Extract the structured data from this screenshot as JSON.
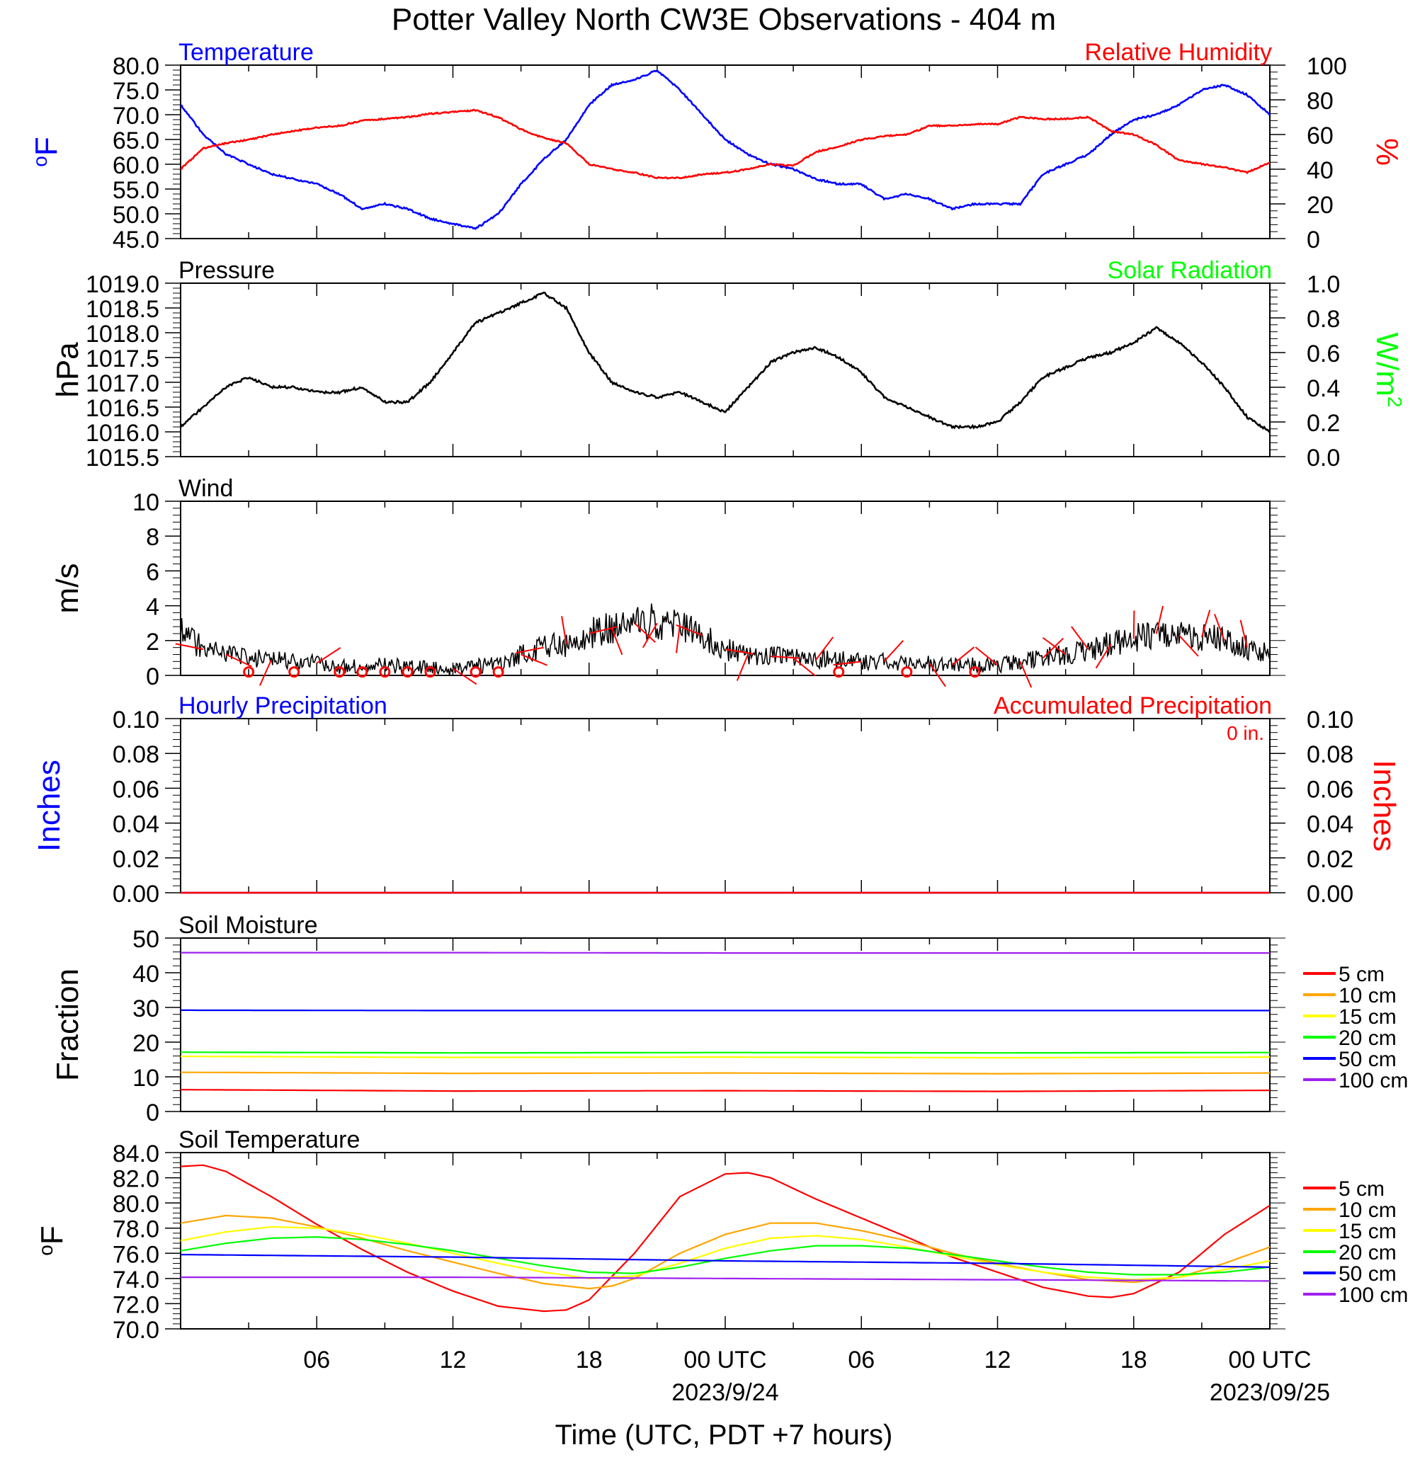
{
  "title": "Potter Valley North CW3E Observations - 404 m",
  "x_axis": {
    "label": "Time (UTC, PDT +7 hours)",
    "ticks": [
      "06",
      "12",
      "18",
      "00 UTC",
      "06",
      "12",
      "18",
      "00 UTC"
    ],
    "dates": [
      "2023/9/24",
      "2023/09/25"
    ]
  },
  "colors": {
    "temperature": "#0000ff",
    "humidity": "#ff0000",
    "pressure": "#000000",
    "solar": "#00ff00",
    "wind": "#000000",
    "wind_barb": "#ff0000",
    "hourly_precip": "#0000ff",
    "accum_precip": "#ff0000",
    "depth_5": "#ff0000",
    "depth_10": "#ffa500",
    "depth_15": "#ffff00",
    "depth_20": "#00ff00",
    "depth_50": "#0000ff",
    "depth_100": "#a020f0"
  },
  "chart_data": [
    {
      "type": "line",
      "left_title": "Temperature",
      "right_title": "Relative Humidity",
      "ylabel_left": "°F",
      "ylabel_right": "%",
      "yticks_left": [
        "45.0",
        "50.0",
        "55.0",
        "60.0",
        "65.0",
        "70.0",
        "75.0",
        "80.0"
      ],
      "yticks_right": [
        "0",
        "20",
        "40",
        "60",
        "80",
        "100"
      ],
      "ylim_left": [
        45,
        80
      ],
      "ylim_right": [
        0,
        100
      ],
      "xlim_hours": [
        1,
        25
      ],
      "series": [
        {
          "name": "Temperature",
          "axis": "left",
          "color": "#0000ff",
          "x": [
            1,
            2,
            3,
            4,
            5,
            6,
            7,
            8,
            9,
            10,
            11,
            12,
            13,
            14,
            15,
            16,
            17,
            18,
            19,
            20,
            21,
            22,
            23,
            24,
            25,
            26,
            27,
            28,
            29,
            30,
            31,
            32,
            33,
            34,
            35,
            36,
            37,
            38,
            39,
            40,
            41,
            42,
            43,
            44,
            45,
            46,
            47,
            48,
            49
          ],
          "y": [
            72,
            66,
            62,
            60,
            58,
            57,
            56,
            54,
            51,
            52,
            51,
            49,
            48,
            47,
            50,
            56,
            61,
            65,
            72,
            76,
            77,
            79,
            75,
            70,
            65,
            62,
            60,
            59,
            57,
            56,
            56,
            53,
            54,
            53,
            51,
            52,
            52,
            52,
            58,
            60,
            62,
            66,
            69,
            70,
            72,
            75,
            76,
            74,
            70
          ]
        },
        {
          "name": "Relative Humidity",
          "axis": "right",
          "color": "#ff0000",
          "x": [
            1,
            2,
            3,
            4,
            5,
            6,
            7,
            8,
            9,
            10,
            11,
            12,
            13,
            14,
            15,
            16,
            17,
            18,
            19,
            20,
            21,
            22,
            23,
            24,
            25,
            26,
            27,
            28,
            29,
            30,
            31,
            32,
            33,
            34,
            35,
            36,
            37,
            38,
            39,
            40,
            41,
            42,
            43,
            44,
            45,
            46,
            47,
            48,
            49
          ],
          "y": [
            40,
            52,
            55,
            57,
            60,
            62,
            64,
            65,
            68,
            69,
            70,
            72,
            73,
            74,
            70,
            63,
            58,
            55,
            43,
            40,
            38,
            35,
            35,
            37,
            38,
            40,
            43,
            42,
            50,
            53,
            57,
            59,
            60,
            65,
            65,
            66,
            66,
            70,
            69,
            69,
            70,
            62,
            60,
            54,
            45,
            43,
            41,
            38,
            44
          ]
        }
      ]
    },
    {
      "type": "line",
      "left_title": "Pressure",
      "right_title": "Solar Radiation",
      "ylabel_left": "hPa",
      "ylabel_right": "W/m",
      "ylabel_right_sup": "2",
      "yticks_left": [
        "1015.5",
        "1016.0",
        "1016.5",
        "1017.0",
        "1017.5",
        "1018.0",
        "1018.5",
        "1019.0"
      ],
      "yticks_right": [
        "0.0",
        "0.2",
        "0.4",
        "0.6",
        "0.8",
        "1.0"
      ],
      "ylim_left": [
        1015.5,
        1019.0
      ],
      "ylim_right": [
        0.0,
        1.0
      ],
      "xlim_hours": [
        1,
        25
      ],
      "series": [
        {
          "name": "Pressure",
          "axis": "left",
          "color": "#000000",
          "x": [
            1,
            2,
            3,
            4,
            5,
            6,
            7,
            8,
            9,
            10,
            11,
            12,
            13,
            14,
            15,
            16,
            17,
            18,
            19,
            20,
            21,
            22,
            23,
            24,
            25,
            26,
            27,
            28,
            29,
            30,
            31,
            32,
            33,
            34,
            35,
            36,
            37,
            38,
            39,
            40,
            41,
            42,
            43,
            44,
            45,
            46,
            47,
            48,
            49
          ],
          "y": [
            1016.1,
            1016.5,
            1016.9,
            1017.1,
            1016.9,
            1016.9,
            1016.8,
            1016.8,
            1016.9,
            1016.6,
            1016.6,
            1017.0,
            1017.6,
            1018.2,
            1018.4,
            1018.6,
            1018.8,
            1018.5,
            1017.6,
            1017.0,
            1016.8,
            1016.7,
            1016.8,
            1016.6,
            1016.4,
            1016.9,
            1017.4,
            1017.6,
            1017.7,
            1017.5,
            1017.2,
            1016.7,
            1016.5,
            1016.3,
            1016.1,
            1016.1,
            1016.2,
            1016.6,
            1017.1,
            1017.3,
            1017.5,
            1017.6,
            1017.8,
            1018.1,
            1017.8,
            1017.4,
            1016.9,
            1016.3,
            1016.0
          ]
        }
      ]
    },
    {
      "type": "line",
      "left_title": "Wind",
      "ylabel_left": "m/s",
      "yticks_left": [
        "0",
        "2",
        "4",
        "6",
        "8",
        "10"
      ],
      "ylim_left": [
        0,
        10
      ],
      "xlim_hours": [
        1,
        25
      ],
      "series": [
        {
          "name": "Wind",
          "axis": "left",
          "color": "#000000",
          "x": [
            1,
            2,
            3,
            4,
            5,
            6,
            7,
            8,
            9,
            10,
            11,
            12,
            13,
            14,
            15,
            16,
            17,
            18,
            19,
            20,
            21,
            22,
            23,
            24,
            25,
            26,
            27,
            28,
            29,
            30,
            31,
            32,
            33,
            34,
            35,
            36,
            37,
            38,
            39,
            40,
            41,
            42,
            43,
            44,
            45,
            46,
            47,
            48,
            49
          ],
          "y": [
            2.6,
            1.5,
            1.2,
            1.0,
            0.9,
            0.8,
            0.7,
            0.5,
            0.5,
            0.6,
            0.5,
            0.4,
            0.4,
            0.5,
            0.7,
            1.2,
            1.6,
            1.8,
            2.4,
            2.7,
            3.0,
            3.1,
            2.9,
            2.3,
            1.5,
            1.2,
            1.1,
            1.0,
            0.9,
            0.9,
            0.8,
            0.8,
            0.7,
            0.7,
            0.6,
            0.6,
            0.6,
            0.8,
            1.0,
            1.2,
            1.5,
            1.8,
            2.1,
            2.4,
            2.3,
            2.2,
            2.0,
            1.6,
            1.2
          ]
        }
      ],
      "calm_hours": [
        4,
        6,
        8,
        9,
        10,
        11,
        12,
        14,
        15,
        30,
        33,
        36
      ]
    },
    {
      "type": "line",
      "left_title": "Hourly Precipitation",
      "right_title": "Accumulated Precipitation",
      "annotation": "0 in.",
      "ylabel_left": "Inches",
      "ylabel_right": "Inches",
      "yticks_left": [
        "0.00",
        "0.02",
        "0.04",
        "0.06",
        "0.08",
        "0.10"
      ],
      "yticks_right": [
        "0.00",
        "0.02",
        "0.04",
        "0.06",
        "0.08",
        "0.10"
      ],
      "ylim_left": [
        0,
        0.1
      ],
      "ylim_right": [
        0,
        0.1
      ],
      "xlim_hours": [
        1,
        25
      ],
      "series": [
        {
          "name": "Hourly Precipitation",
          "axis": "left",
          "color": "#0000ff",
          "x": [
            1,
            49
          ],
          "y": [
            0,
            0
          ]
        },
        {
          "name": "Accumulated Precipitation",
          "axis": "right",
          "color": "#ff0000",
          "x": [
            1,
            49
          ],
          "y": [
            0,
            0
          ]
        }
      ]
    },
    {
      "type": "line",
      "left_title": "Soil Moisture",
      "ylabel_left": "Fraction",
      "yticks_left": [
        "0",
        "10",
        "20",
        "30",
        "40",
        "50"
      ],
      "ylim_left": [
        0,
        50
      ],
      "xlim_hours": [
        1,
        25
      ],
      "legend": [
        "5 cm",
        "10 cm",
        "15 cm",
        "20 cm",
        "50 cm",
        "100 cm"
      ],
      "series": [
        {
          "name": "5 cm",
          "axis": "left",
          "color": "#ff0000",
          "x": [
            1,
            13,
            25,
            37,
            49
          ],
          "y": [
            6.3,
            5.9,
            6.0,
            5.8,
            6.1
          ]
        },
        {
          "name": "10 cm",
          "axis": "left",
          "color": "#ffa500",
          "x": [
            1,
            13,
            25,
            37,
            49
          ],
          "y": [
            11.3,
            11.0,
            11.1,
            10.9,
            11.1
          ]
        },
        {
          "name": "15 cm",
          "axis": "left",
          "color": "#ffff00",
          "x": [
            1,
            13,
            25,
            37,
            49
          ],
          "y": [
            15.9,
            15.6,
            15.7,
            15.5,
            15.7
          ]
        },
        {
          "name": "20 cm",
          "axis": "left",
          "color": "#00ff00",
          "x": [
            1,
            13,
            25,
            37,
            49
          ],
          "y": [
            17.1,
            16.9,
            17.0,
            16.9,
            17.0
          ]
        },
        {
          "name": "50 cm",
          "axis": "left",
          "color": "#0000ff",
          "x": [
            1,
            13,
            25,
            37,
            49
          ],
          "y": [
            29.2,
            29.1,
            29.1,
            29.1,
            29.1
          ]
        },
        {
          "name": "100 cm",
          "axis": "left",
          "color": "#a020f0",
          "x": [
            1,
            13,
            25,
            37,
            49
          ],
          "y": [
            45.8,
            45.8,
            45.7,
            45.7,
            45.7
          ]
        }
      ]
    },
    {
      "type": "line",
      "left_title": "Soil Temperature",
      "ylabel_left": "°F",
      "yticks_left": [
        "70.0",
        "72.0",
        "74.0",
        "76.0",
        "78.0",
        "80.0",
        "82.0",
        "84.0"
      ],
      "ylim_left": [
        70,
        84
      ],
      "xlim_hours": [
        1,
        25
      ],
      "legend": [
        "5 cm",
        "10 cm",
        "15 cm",
        "20 cm",
        "50 cm",
        "100 cm"
      ],
      "series": [
        {
          "name": "5 cm",
          "axis": "left",
          "color": "#ff0000",
          "x": [
            1,
            2,
            3,
            5,
            7,
            9,
            11,
            13,
            15,
            17,
            18,
            19,
            21,
            23,
            25,
            26,
            27,
            29,
            31,
            33,
            35,
            37,
            39,
            41,
            42,
            43,
            45,
            47,
            49
          ],
          "y": [
            82.9,
            83.0,
            82.5,
            80.5,
            78.3,
            76.3,
            74.5,
            73.0,
            71.8,
            71.4,
            71.5,
            72.3,
            76.0,
            80.5,
            82.3,
            82.4,
            82.0,
            80.3,
            78.8,
            77.3,
            75.7,
            74.5,
            73.3,
            72.6,
            72.5,
            72.8,
            74.5,
            77.5,
            79.8
          ]
        },
        {
          "name": "10 cm",
          "axis": "left",
          "color": "#ffa500",
          "x": [
            1,
            3,
            5,
            7,
            9,
            11,
            13,
            15,
            17,
            19,
            20,
            21,
            23,
            25,
            27,
            29,
            31,
            33,
            35,
            37,
            39,
            41,
            43,
            45,
            47,
            49
          ],
          "y": [
            78.4,
            79.0,
            78.8,
            78.1,
            77.2,
            76.2,
            75.3,
            74.4,
            73.6,
            73.2,
            73.4,
            74.0,
            76.0,
            77.5,
            78.4,
            78.4,
            77.8,
            77.0,
            76.0,
            75.2,
            74.5,
            73.9,
            73.7,
            74.1,
            75.2,
            76.5
          ]
        },
        {
          "name": "15 cm",
          "axis": "left",
          "color": "#ffff00",
          "x": [
            1,
            3,
            5,
            7,
            9,
            11,
            13,
            15,
            17,
            19,
            21,
            23,
            25,
            27,
            29,
            31,
            33,
            35,
            37,
            39,
            41,
            43,
            45,
            47,
            49
          ],
          "y": [
            77.0,
            77.7,
            78.1,
            78.0,
            77.5,
            76.8,
            76.0,
            75.2,
            74.5,
            74.0,
            74.2,
            75.2,
            76.4,
            77.2,
            77.4,
            77.1,
            76.5,
            75.8,
            75.1,
            74.5,
            74.1,
            73.9,
            74.1,
            74.7,
            75.4
          ]
        },
        {
          "name": "20 cm",
          "axis": "left",
          "color": "#00ff00",
          "x": [
            1,
            3,
            5,
            7,
            9,
            11,
            13,
            15,
            17,
            19,
            21,
            23,
            25,
            27,
            29,
            31,
            33,
            35,
            37,
            39,
            41,
            43,
            45,
            47,
            49
          ],
          "y": [
            76.2,
            76.8,
            77.2,
            77.3,
            77.1,
            76.7,
            76.2,
            75.6,
            75.0,
            74.5,
            74.4,
            74.9,
            75.6,
            76.2,
            76.6,
            76.6,
            76.4,
            75.9,
            75.4,
            74.9,
            74.5,
            74.3,
            74.3,
            74.5,
            74.9
          ]
        },
        {
          "name": "50 cm",
          "axis": "left",
          "color": "#0000ff",
          "x": [
            1,
            13,
            25,
            37,
            49
          ],
          "y": [
            75.9,
            75.7,
            75.4,
            75.2,
            74.9
          ]
        },
        {
          "name": "100 cm",
          "axis": "left",
          "color": "#a020f0",
          "x": [
            1,
            13,
            25,
            37,
            49
          ],
          "y": [
            74.1,
            74.1,
            74.0,
            73.9,
            73.8
          ]
        }
      ]
    }
  ]
}
